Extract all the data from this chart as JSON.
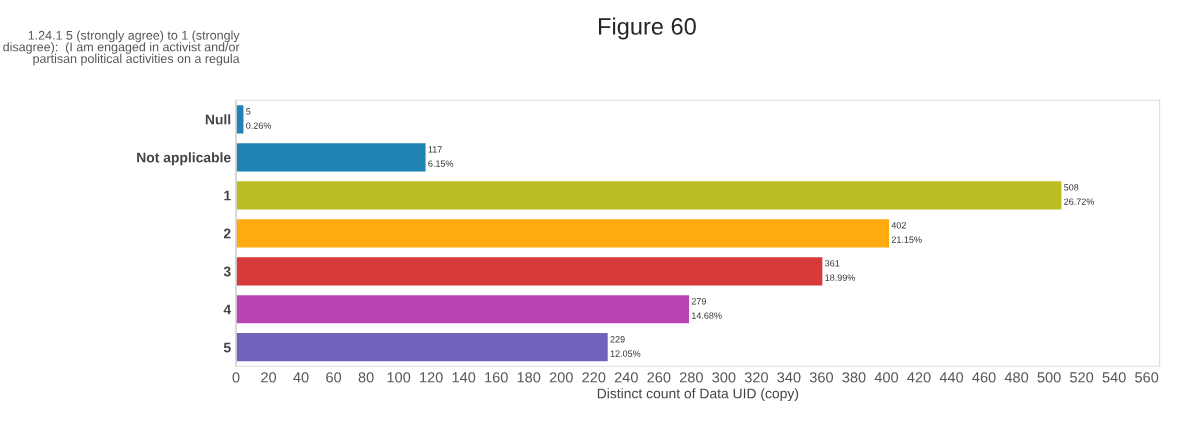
{
  "chart_data": {
    "type": "bar",
    "orientation": "horizontal",
    "title": "Figure 60",
    "ylabel": "1.24.1 5 (strongly agree) to 1 (strongly disagree):  (I am engaged in activist and/or partisan political activities on a regula",
    "xlabel": "Distinct count of Data UID (copy)",
    "categories": [
      "Null",
      "Not applicable",
      "1",
      "2",
      "3",
      "4",
      "5"
    ],
    "values": [
      5,
      117,
      508,
      402,
      361,
      279,
      229
    ],
    "colors": [
      "#1f83b4",
      "#1f83b4",
      "#bcbd22",
      "#ffaa0e",
      "#d63a3a",
      "#b845b3",
      "#7262bc"
    ],
    "value_labels": [
      "5\n0.26%",
      "117\n6.15%",
      "508\n26.72%",
      "402\n21.15%",
      "361\n18.99%",
      "279\n14.68%",
      "229\n12.05%"
    ],
    "xlim": [
      0,
      568
    ],
    "xticks": [
      0,
      20,
      40,
      60,
      80,
      100,
      120,
      140,
      160,
      180,
      200,
      220,
      240,
      260,
      280,
      300,
      320,
      340,
      360,
      380,
      400,
      420,
      440,
      460,
      480,
      500,
      520,
      540,
      560
    ],
    "grid": false
  }
}
